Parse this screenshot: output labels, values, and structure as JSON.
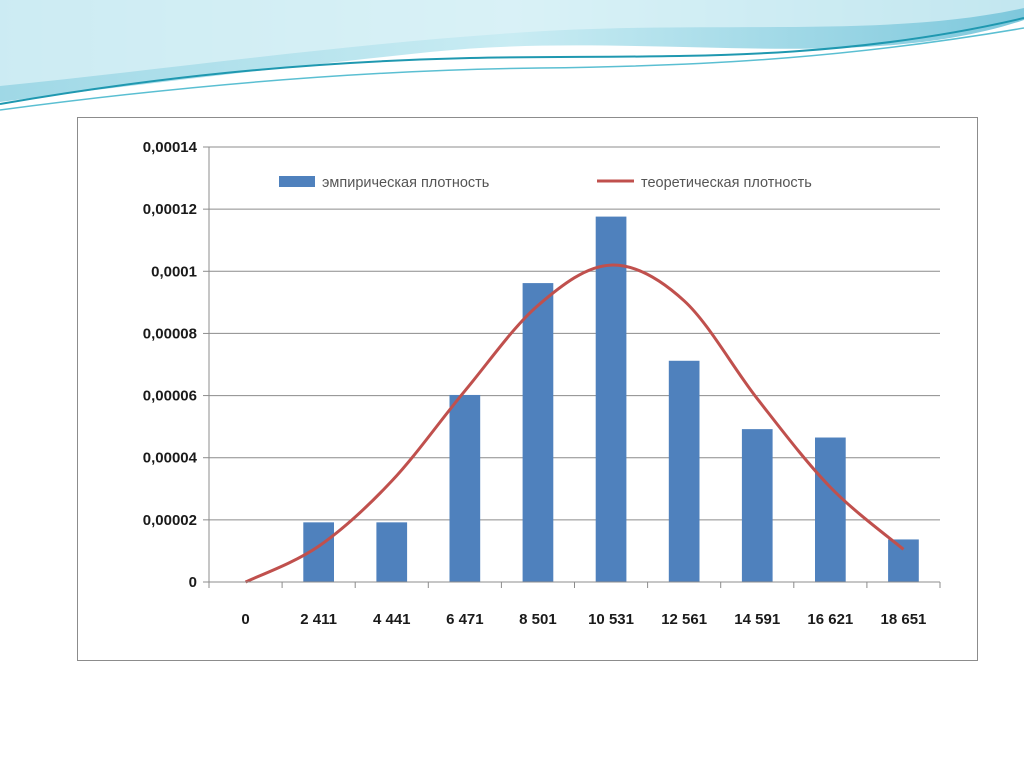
{
  "colors": {
    "bar": "#4f81bd",
    "line": "#c0504d",
    "wave_dark": "#2a9bb0",
    "wave_light": "#a8dbe8"
  },
  "chart_data": {
    "type": "bar",
    "title": "",
    "xlabel": "",
    "ylabel": "",
    "categories": [
      "0",
      "2 411",
      "4 441",
      "6 471",
      "8 501",
      "10 531",
      "12 561",
      "14 591",
      "16 621",
      "18 651"
    ],
    "ylim": [
      0,
      0.00014
    ],
    "yticks": [
      0,
      2e-05,
      4e-05,
      6e-05,
      8e-05,
      0.0001,
      0.00012,
      0.00014
    ],
    "ytick_labels": [
      "0",
      "0,00002",
      "0,00004",
      "0,00006",
      "0,00008",
      "0,0001",
      "0,00012",
      "0,00014"
    ],
    "grid": true,
    "legend_position": "top",
    "series": [
      {
        "name": "эмпирическая плотность",
        "kind": "bar",
        "values": [
          0,
          1.92e-05,
          1.92e-05,
          6.02e-05,
          9.62e-05,
          0.0001176,
          7.12e-05,
          4.92e-05,
          4.65e-05,
          1.37e-05
        ]
      },
      {
        "name": "теоретическая плотность",
        "kind": "line",
        "values": [
          0,
          1.15e-05,
          3.25e-05,
          6.15e-05,
          8.9e-05,
          0.000102,
          9.05e-05,
          5.9e-05,
          3.05e-05,
          1.05e-05
        ]
      }
    ]
  }
}
